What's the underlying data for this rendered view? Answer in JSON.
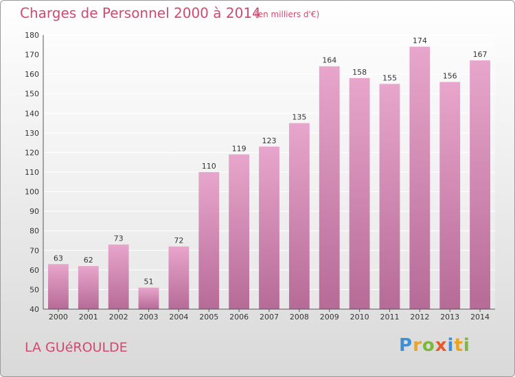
{
  "header": {
    "title": "Charges de Personnel 2000 à 2014",
    "unit": "(en milliers d'€)"
  },
  "footer": {
    "commune": "LA GUéROULDE",
    "logo": [
      "P",
      "r",
      "o",
      "x",
      "i",
      "t",
      "i"
    ]
  },
  "colors": {
    "bar_top": "#e8a6cc",
    "bar_bottom": "#b66b97",
    "text": "#d2496f",
    "grid": "#ffffff"
  },
  "chart_data": {
    "type": "bar",
    "title": "Charges de Personnel 2000 à 2014",
    "subtitle": "(en milliers d'€)",
    "xlabel": "",
    "ylabel": "",
    "categories": [
      "2000",
      "2001",
      "2002",
      "2003",
      "2004",
      "2005",
      "2006",
      "2007",
      "2008",
      "2009",
      "2010",
      "2011",
      "2012",
      "2013",
      "2014"
    ],
    "values": [
      63,
      62,
      73,
      51,
      72,
      110,
      119,
      123,
      135,
      164,
      158,
      155,
      174,
      156,
      167
    ],
    "ylim": [
      40,
      180
    ],
    "yticks": [
      40,
      50,
      60,
      70,
      80,
      90,
      100,
      110,
      120,
      130,
      140,
      150,
      160,
      170,
      180
    ],
    "grid": true,
    "legend": "none"
  }
}
